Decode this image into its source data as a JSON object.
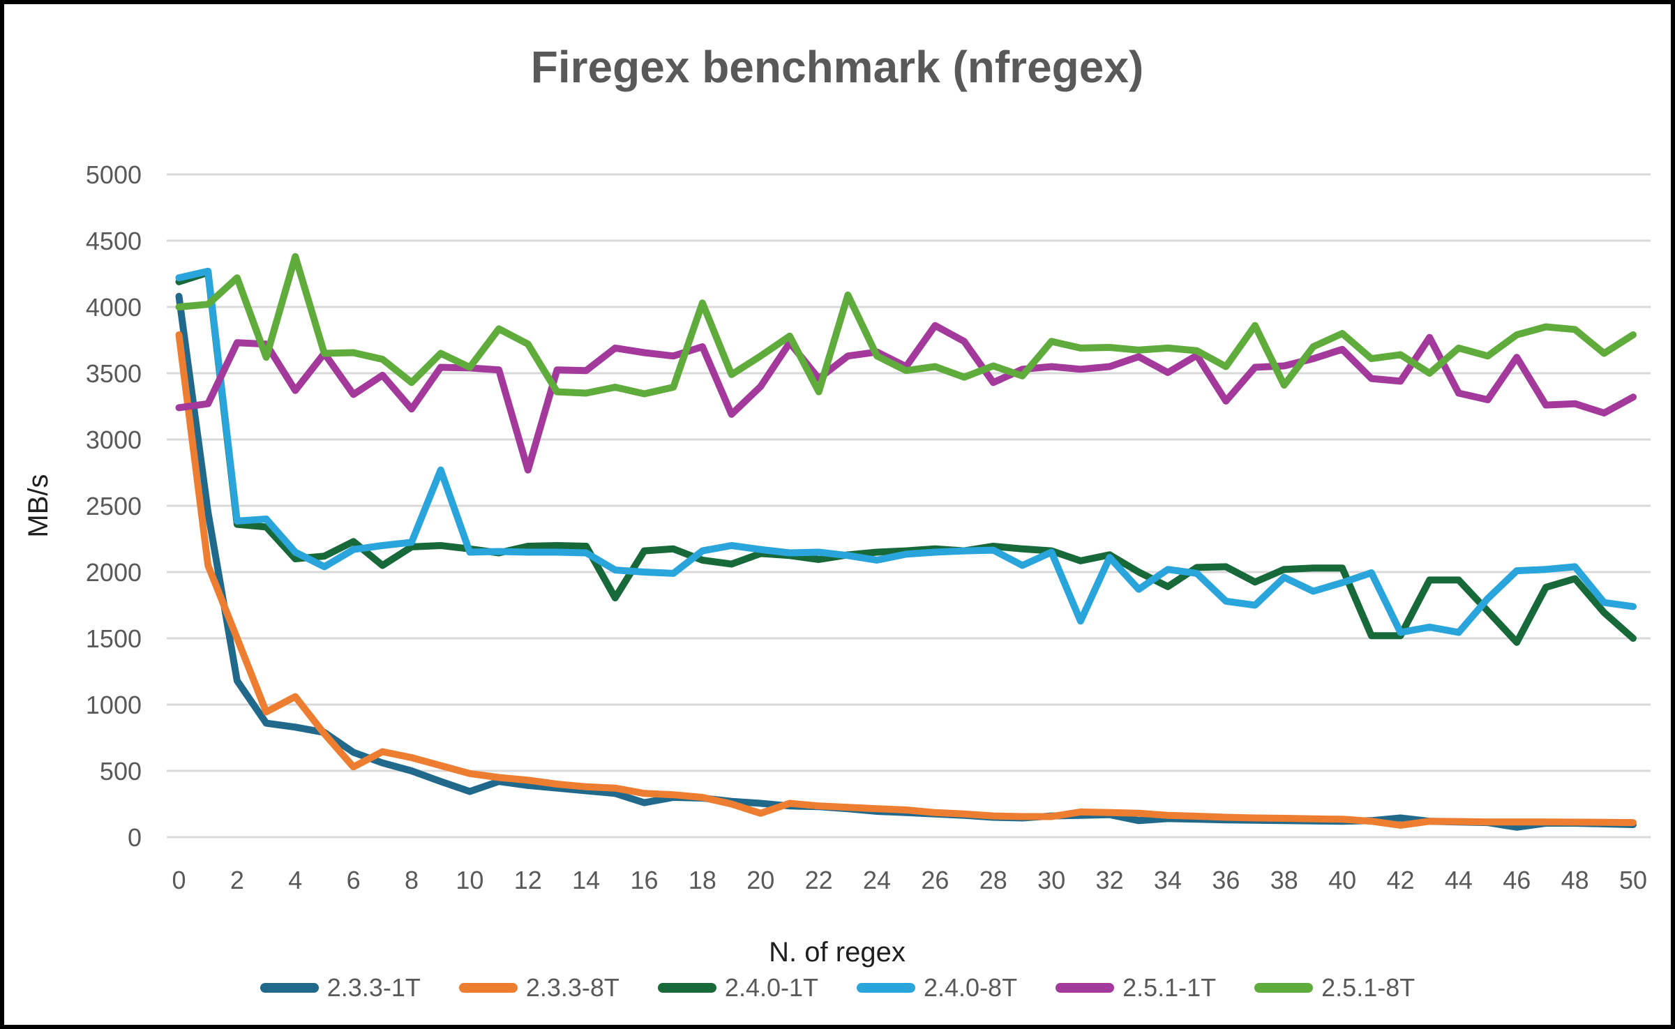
{
  "chart": {
    "title": "Firegex benchmark (nfregex)"
  },
  "axis": {
    "y_label": "MB/s",
    "x_label": "N. of regex"
  },
  "colors": {
    "gridline": "#d9d9d9",
    "tick_text": "#595959",
    "axis_text": "#1f1f1f",
    "title_text": "#595959",
    "frame": "#000000",
    "background": "#ffffff"
  },
  "chart_data": {
    "type": "line",
    "title": "Firegex benchmark (nfregex)",
    "xlabel": "N. of regex",
    "ylabel": "MB/s",
    "x": [
      0,
      1,
      2,
      3,
      4,
      5,
      6,
      7,
      8,
      9,
      10,
      11,
      12,
      13,
      14,
      15,
      16,
      17,
      18,
      19,
      20,
      21,
      22,
      23,
      24,
      25,
      26,
      27,
      28,
      29,
      30,
      31,
      32,
      33,
      34,
      35,
      36,
      37,
      38,
      39,
      40,
      41,
      42,
      43,
      44,
      45,
      46,
      47,
      48,
      49,
      50
    ],
    "xlim": [
      0,
      50
    ],
    "xtick_step": 2,
    "ylim": [
      0,
      5000
    ],
    "ytick_step": 500,
    "grid": "horizontal",
    "legend_position": "bottom",
    "series": [
      {
        "name": "2.3.3-1T",
        "color": "#21698b",
        "values": [
          4080,
          2450,
          1180,
          860,
          830,
          790,
          640,
          560,
          500,
          420,
          345,
          420,
          390,
          370,
          350,
          330,
          260,
          300,
          295,
          270,
          255,
          235,
          230,
          215,
          195,
          185,
          175,
          165,
          150,
          145,
          160,
          165,
          170,
          125,
          140,
          135,
          130,
          128,
          125,
          122,
          120,
          125,
          145,
          120,
          115,
          110,
          75,
          105,
          105,
          100,
          95
        ]
      },
      {
        "name": "2.3.3-8T",
        "color": "#ed7d31",
        "values": [
          3790,
          2050,
          1500,
          945,
          1060,
          780,
          530,
          645,
          600,
          540,
          480,
          450,
          430,
          400,
          380,
          370,
          330,
          320,
          300,
          250,
          180,
          255,
          235,
          225,
          215,
          205,
          185,
          175,
          160,
          155,
          155,
          190,
          185,
          180,
          165,
          158,
          150,
          145,
          142,
          138,
          135,
          120,
          90,
          120,
          118,
          115,
          115,
          115,
          113,
          112,
          110
        ]
      },
      {
        "name": "2.4.0-1T",
        "color": "#17693a",
        "values": [
          4190,
          4260,
          2360,
          2340,
          2100,
          2120,
          2230,
          2050,
          2190,
          2200,
          2175,
          2145,
          2195,
          2200,
          2195,
          1805,
          2160,
          2175,
          2090,
          2060,
          2140,
          2125,
          2095,
          2130,
          2150,
          2160,
          2175,
          2160,
          2195,
          2175,
          2160,
          2085,
          2130,
          2000,
          1890,
          2035,
          2040,
          1925,
          2020,
          2030,
          2030,
          1520,
          1520,
          1940,
          1940,
          1705,
          1470,
          1885,
          1950,
          1695,
          1500
        ]
      },
      {
        "name": "2.4.0-8T",
        "color": "#29a5dc",
        "values": [
          4220,
          4270,
          2385,
          2400,
          2150,
          2040,
          2170,
          2200,
          2225,
          2770,
          2150,
          2155,
          2150,
          2150,
          2145,
          2015,
          2000,
          1990,
          2160,
          2200,
          2170,
          2145,
          2150,
          2125,
          2090,
          2135,
          2150,
          2160,
          2165,
          2050,
          2150,
          1630,
          2110,
          1870,
          2020,
          1990,
          1780,
          1750,
          1960,
          1855,
          1920,
          1995,
          1545,
          1585,
          1545,
          1800,
          2010,
          2020,
          2040,
          1770,
          1740
        ]
      },
      {
        "name": "2.5.1-1T",
        "color": "#a33a9b",
        "values": [
          3240,
          3270,
          3730,
          3720,
          3370,
          3650,
          3340,
          3485,
          3230,
          3545,
          3540,
          3525,
          2770,
          3525,
          3520,
          3690,
          3655,
          3630,
          3700,
          3190,
          3400,
          3730,
          3460,
          3630,
          3660,
          3550,
          3860,
          3740,
          3430,
          3530,
          3550,
          3530,
          3550,
          3625,
          3505,
          3635,
          3290,
          3545,
          3555,
          3610,
          3680,
          3460,
          3440,
          3770,
          3350,
          3300,
          3620,
          3260,
          3270,
          3200,
          3320
        ]
      },
      {
        "name": "2.5.1-8T",
        "color": "#5fac3c",
        "values": [
          4000,
          4020,
          4220,
          3620,
          4380,
          3650,
          3655,
          3605,
          3430,
          3650,
          3545,
          3835,
          3720,
          3360,
          3350,
          3395,
          3345,
          3395,
          4030,
          3490,
          3630,
          3780,
          3360,
          4090,
          3630,
          3520,
          3550,
          3470,
          3555,
          3480,
          3740,
          3690,
          3695,
          3675,
          3690,
          3670,
          3550,
          3860,
          3410,
          3700,
          3800,
          3610,
          3640,
          3500,
          3690,
          3630,
          3790,
          3850,
          3830,
          3650,
          3790
        ]
      }
    ]
  }
}
